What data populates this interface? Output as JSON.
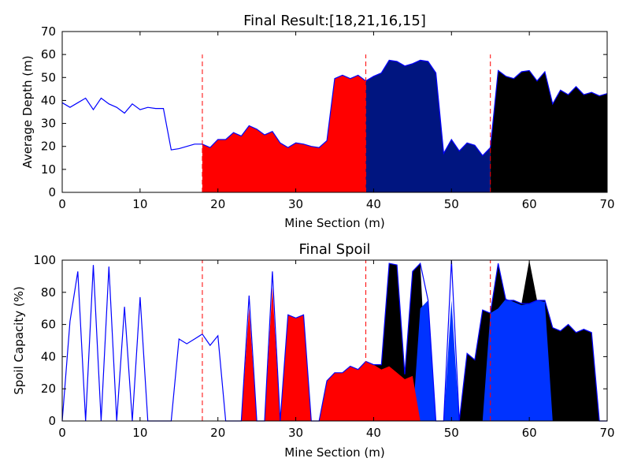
{
  "chart_data": [
    {
      "type": "line",
      "title": "Final Result:[18,21,16,15]",
      "xlabel": "Mine Section (m)",
      "ylabel": "Average Depth (m)",
      "xlim": [
        0,
        70
      ],
      "ylim": [
        0,
        70
      ],
      "xticks": [
        0,
        10,
        20,
        30,
        40,
        50,
        60,
        70
      ],
      "yticks": [
        0,
        10,
        20,
        30,
        40,
        50,
        60,
        70
      ],
      "grid": false,
      "boundaries": [
        18,
        39,
        55
      ],
      "boundary_top": 60,
      "colors": {
        "line": "#0000ff",
        "boundary": "#ff0000",
        "frame": "#000000"
      },
      "fills": [
        {
          "from": 18,
          "to": 39,
          "color": "#ff0000"
        },
        {
          "from": 39,
          "to": 55,
          "color": "#001580"
        },
        {
          "from": 55,
          "to": 70,
          "color": "#000000"
        }
      ],
      "x": [
        0,
        1,
        2,
        3,
        4,
        5,
        6,
        7,
        8,
        9,
        10,
        11,
        12,
        13,
        14,
        15,
        16,
        17,
        18,
        19,
        20,
        21,
        22,
        23,
        24,
        25,
        26,
        27,
        28,
        29,
        30,
        31,
        32,
        33,
        34,
        35,
        36,
        37,
        38,
        39,
        40,
        41,
        42,
        43,
        44,
        45,
        46,
        47,
        48,
        49,
        50,
        51,
        52,
        53,
        54,
        55,
        56,
        57,
        58,
        59,
        60,
        61,
        62,
        63,
        64,
        65,
        66,
        67,
        68,
        69,
        70
      ],
      "y": [
        39,
        37,
        39,
        41,
        36,
        41,
        38.5,
        37,
        34.5,
        38.5,
        36,
        37,
        36.5,
        36.5,
        18.5,
        19,
        20,
        21,
        21,
        19.5,
        23,
        23,
        26,
        24.5,
        29,
        27.5,
        25,
        26.5,
        21.5,
        19.5,
        21.5,
        21,
        20,
        19.5,
        22.5,
        49.5,
        51,
        49.5,
        51,
        48.5,
        50.5,
        52,
        57.5,
        57,
        55,
        56,
        57.5,
        57,
        52,
        17,
        23,
        18,
        21.5,
        20.5,
        16,
        19.5,
        53,
        50.5,
        49.5,
        52.5,
        53,
        48.5,
        52.5,
        38.5,
        44.5,
        42.5,
        46,
        42.5,
        43.5,
        42,
        43
      ]
    },
    {
      "type": "area",
      "title": "Final Spoil",
      "xlabel": "Mine Section (m)",
      "ylabel": "Spoil Capacity (%)",
      "xlim": [
        0,
        70
      ],
      "ylim": [
        0,
        100
      ],
      "xticks": [
        0,
        10,
        20,
        30,
        40,
        50,
        60,
        70
      ],
      "yticks": [
        0,
        20,
        40,
        60,
        80,
        100
      ],
      "grid": false,
      "boundaries": [
        18,
        39,
        55
      ],
      "boundary_top": 100,
      "colors": {
        "line": "#0000ff",
        "boundary": "#ff0000",
        "frame": "#000000"
      },
      "x": [
        0,
        1,
        2,
        3,
        4,
        5,
        6,
        7,
        8,
        9,
        10,
        11,
        12,
        13,
        14,
        15,
        16,
        17,
        18,
        19,
        20,
        21,
        22,
        23,
        24,
        25,
        26,
        27,
        28,
        29,
        30,
        31,
        32,
        33,
        34,
        35,
        36,
        37,
        38,
        39,
        40,
        41,
        42,
        43,
        44,
        45,
        46,
        47,
        48,
        49,
        50,
        51,
        52,
        53,
        54,
        55,
        56,
        57,
        58,
        59,
        60,
        61,
        62,
        63,
        64,
        65,
        66,
        67,
        68,
        69,
        70
      ],
      "y": [
        0,
        62,
        93,
        0,
        97,
        0,
        96,
        0,
        71,
        0,
        77,
        0,
        0,
        0,
        0,
        51,
        48,
        51,
        54,
        47,
        53,
        0,
        0,
        0,
        78,
        0,
        0,
        93,
        0,
        66,
        64,
        66,
        0,
        0,
        25,
        30,
        30,
        34,
        32,
        37,
        35,
        35,
        98,
        97,
        29,
        93,
        98,
        75,
        0,
        0,
        100,
        0,
        42,
        38,
        69,
        67,
        98,
        75,
        75,
        73,
        73,
        75,
        75,
        58,
        56,
        60,
        55,
        57,
        55,
        0,
        0
      ],
      "fills": [
        {
          "color": "#000000",
          "x": [
            0,
            1,
            2,
            3,
            4,
            5,
            6,
            7,
            8,
            9,
            10,
            11,
            12,
            13,
            14,
            15,
            16,
            17,
            18,
            19,
            20,
            21,
            22,
            23,
            24,
            25,
            26,
            27,
            28,
            29,
            30,
            31,
            32,
            33,
            34,
            35,
            36,
            37,
            38,
            39,
            40,
            41,
            42,
            43,
            44,
            45,
            46,
            47,
            48,
            49,
            50,
            51,
            52,
            53,
            54,
            55,
            56,
            57,
            58,
            59,
            60,
            61,
            62,
            63,
            64,
            65,
            66,
            67,
            68,
            69,
            70
          ],
          "y": [
            0,
            0,
            0,
            0,
            0,
            0,
            0,
            0,
            0,
            0,
            0,
            0,
            0,
            0,
            0,
            0,
            0,
            0,
            0,
            0,
            0,
            0,
            0,
            0,
            0,
            0,
            0,
            0,
            0,
            0,
            0,
            0,
            0,
            0,
            0,
            0,
            0,
            0,
            0,
            0,
            35,
            35,
            98,
            97,
            29,
            93,
            98,
            0,
            0,
            0,
            0,
            0,
            42,
            38,
            69,
            67,
            98,
            75,
            75,
            73,
            100,
            75,
            75,
            58,
            56,
            60,
            55,
            57,
            55,
            0,
            0
          ]
        },
        {
          "color": "#0033ff",
          "x": [
            0,
            1,
            2,
            3,
            4,
            5,
            6,
            7,
            8,
            9,
            10,
            11,
            12,
            13,
            14,
            15,
            16,
            17,
            18,
            19,
            20,
            21,
            22,
            23,
            24,
            25,
            26,
            27,
            28,
            29,
            30,
            31,
            32,
            33,
            34,
            35,
            36,
            37,
            38,
            39,
            40,
            41,
            42,
            43,
            44,
            45,
            46,
            47,
            48,
            49,
            50,
            51,
            52,
            53,
            54,
            55,
            56,
            57,
            58,
            59,
            60,
            61,
            62,
            63,
            64,
            65,
            66,
            67,
            68,
            69,
            70
          ],
          "y": [
            0,
            0,
            0,
            0,
            0,
            0,
            0,
            0,
            0,
            0,
            0,
            0,
            0,
            0,
            0,
            0,
            0,
            0,
            0,
            0,
            0,
            0,
            0,
            0,
            0,
            0,
            0,
            0,
            0,
            0,
            0,
            0,
            0,
            0,
            0,
            0,
            0,
            0,
            0,
            0,
            0,
            0,
            0,
            0,
            0,
            0,
            70,
            75,
            0,
            0,
            75,
            0,
            0,
            0,
            0,
            67,
            70,
            76,
            74,
            72,
            73,
            75,
            74,
            0,
            0,
            0,
            0,
            0,
            0,
            0,
            0
          ]
        },
        {
          "color": "#ff0000",
          "x": [
            0,
            1,
            2,
            3,
            4,
            5,
            6,
            7,
            8,
            9,
            10,
            11,
            12,
            13,
            14,
            15,
            16,
            17,
            18,
            19,
            20,
            21,
            22,
            23,
            24,
            25,
            26,
            27,
            28,
            29,
            30,
            31,
            32,
            33,
            34,
            35,
            36,
            37,
            38,
            39,
            40,
            41,
            42,
            43,
            44,
            45,
            46,
            47,
            48,
            49,
            50,
            51,
            52,
            53,
            54,
            55,
            56,
            57,
            58,
            59,
            60,
            61,
            62,
            63,
            64,
            65,
            66,
            67,
            68,
            69,
            70
          ],
          "y": [
            0,
            0,
            0,
            0,
            0,
            0,
            0,
            0,
            0,
            0,
            0,
            0,
            0,
            0,
            0,
            0,
            0,
            0,
            0,
            0,
            0,
            0,
            0,
            0,
            70,
            0,
            0,
            83,
            0,
            66,
            64,
            66,
            0,
            0,
            25,
            30,
            30,
            34,
            32,
            37,
            35,
            32,
            34,
            30,
            26,
            28,
            0,
            0,
            0,
            0,
            0,
            0,
            0,
            0,
            0,
            0,
            0,
            0,
            0,
            0,
            0,
            0,
            0,
            0,
            0,
            0,
            0,
            0,
            0,
            0,
            0
          ]
        }
      ]
    }
  ]
}
